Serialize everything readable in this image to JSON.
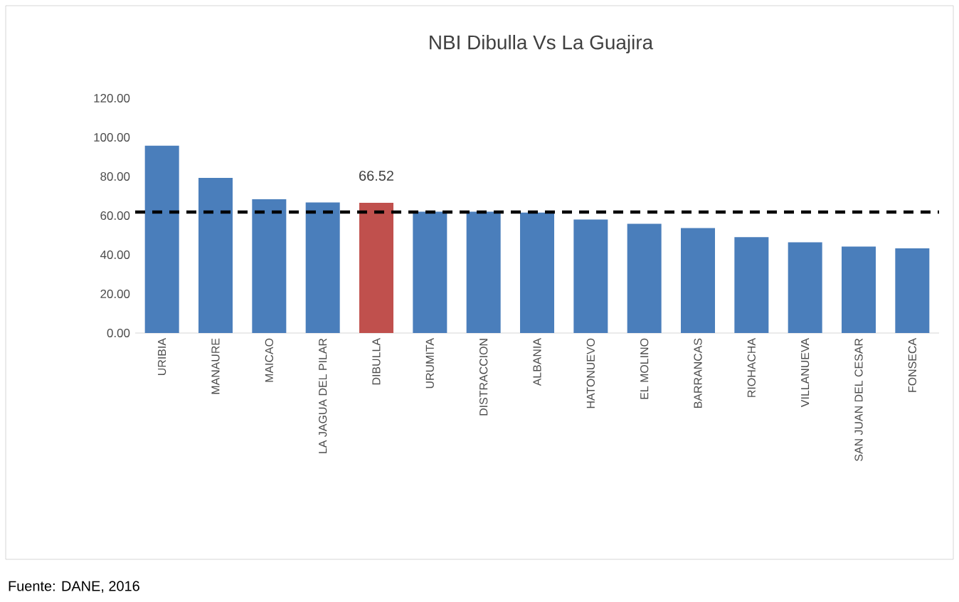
{
  "chart_data": {
    "type": "bar",
    "title": "NBI Dibulla Vs La Guajira",
    "categories": [
      "URIBIA",
      "MANAURE",
      "MAICAO",
      "LA JAGUA DEL PILAR",
      "DIBULLA",
      "URUMITA",
      "DISTRACCION",
      "ALBANIA",
      "HATONUEVO",
      "EL MOLINO",
      "BARRANCAS",
      "RIOHACHA",
      "VILLANUEVA",
      "SAN JUAN DEL CESAR",
      "FONSECA"
    ],
    "values": [
      95.7,
      79.3,
      68.4,
      66.7,
      66.52,
      62.0,
      62.0,
      61.5,
      58.0,
      55.8,
      53.6,
      49.0,
      46.4,
      44.2,
      43.3
    ],
    "colors": [
      "#4a7ebb",
      "#4a7ebb",
      "#4a7ebb",
      "#4a7ebb",
      "#c0504d",
      "#4a7ebb",
      "#4a7ebb",
      "#4a7ebb",
      "#4a7ebb",
      "#4a7ebb",
      "#4a7ebb",
      "#4a7ebb",
      "#4a7ebb",
      "#4a7ebb",
      "#4a7ebb"
    ],
    "value_labels": [
      null,
      null,
      null,
      null,
      "66.52",
      null,
      null,
      null,
      null,
      null,
      null,
      null,
      null,
      null,
      null
    ],
    "ylim": [
      0,
      120
    ],
    "yticks": [
      {
        "value": 0,
        "label": "0.00"
      },
      {
        "value": 20,
        "label": "20.00"
      },
      {
        "value": 40,
        "label": "40.00"
      },
      {
        "value": 60,
        "label": "60.00"
      },
      {
        "value": 80,
        "label": "80.00"
      },
      {
        "value": 100,
        "label": "100.00"
      },
      {
        "value": 120,
        "label": "120.00"
      }
    ],
    "ref_lines": [
      {
        "axis": "y",
        "value": 61.8,
        "color": "#000000",
        "line_style": "dashed"
      }
    ],
    "grid": false,
    "annotations": [
      "Fuente: DANE, 2016"
    ]
  }
}
